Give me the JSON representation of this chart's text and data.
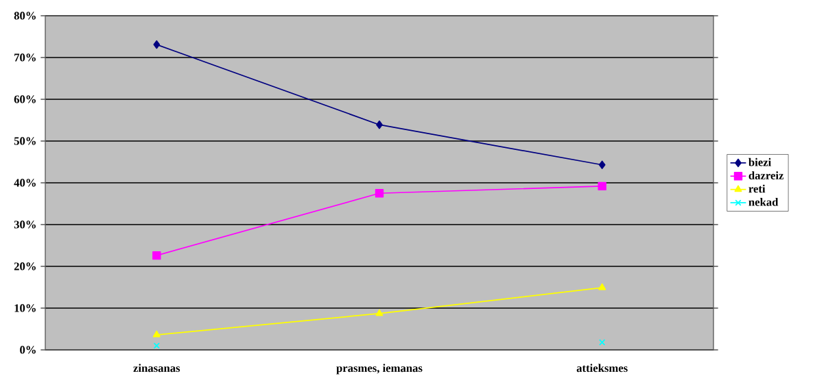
{
  "chart_data": {
    "type": "line",
    "categories": [
      "zinasanas",
      "prasmes, iemanas",
      "attieksmes"
    ],
    "series": [
      {
        "name": "biezi",
        "color": "#000080",
        "marker": "diamond",
        "values": [
          73.1,
          53.9,
          44.3
        ]
      },
      {
        "name": "dazreiz",
        "color": "#ff00ff",
        "marker": "square",
        "values": [
          22.6,
          37.5,
          39.2
        ]
      },
      {
        "name": "reti",
        "color": "#ffff00",
        "marker": "triangle",
        "values": [
          3.6,
          8.7,
          14.9
        ]
      },
      {
        "name": "nekad",
        "color": "#00ffff",
        "marker": "cross",
        "values": [
          1.0,
          null,
          1.8
        ]
      }
    ],
    "ylim": [
      0,
      80
    ],
    "yticks": [
      {
        "value": 0,
        "label": "0%"
      },
      {
        "value": 10,
        "label": "10%"
      },
      {
        "value": 20,
        "label": "20%"
      },
      {
        "value": 30,
        "label": "30%"
      },
      {
        "value": 40,
        "label": "40%"
      },
      {
        "value": 50,
        "label": "50%"
      },
      {
        "value": 60,
        "label": "60%"
      },
      {
        "value": 70,
        "label": "70%"
      },
      {
        "value": 80,
        "label": "80%"
      }
    ],
    "grid": "y",
    "legend": "right"
  }
}
